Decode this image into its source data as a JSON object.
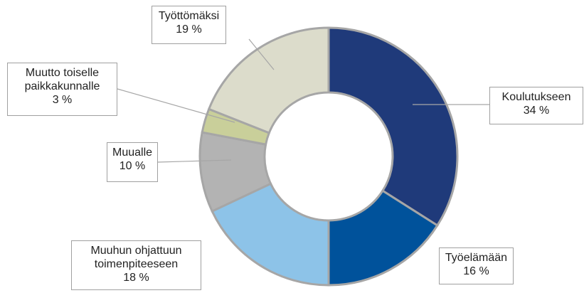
{
  "chart_data": {
    "type": "donut",
    "categories": [
      "Koulutukseen",
      "Työelämään",
      "Muuhun ohjattuun toimenpiteeseen",
      "Muualle",
      "Muutto toiselle paikkakunnalle",
      "Työttömäksi"
    ],
    "values": [
      34,
      16,
      18,
      10,
      3,
      19
    ],
    "value_labels": [
      "34 %",
      "16 %",
      "18 %",
      "10 %",
      "3 %",
      "19 %"
    ],
    "colors": [
      "#1f3a7a",
      "#00529b",
      "#8dc3e8",
      "#b3b3b3",
      "#c9cf9a",
      "#dcdccb"
    ]
  }
}
